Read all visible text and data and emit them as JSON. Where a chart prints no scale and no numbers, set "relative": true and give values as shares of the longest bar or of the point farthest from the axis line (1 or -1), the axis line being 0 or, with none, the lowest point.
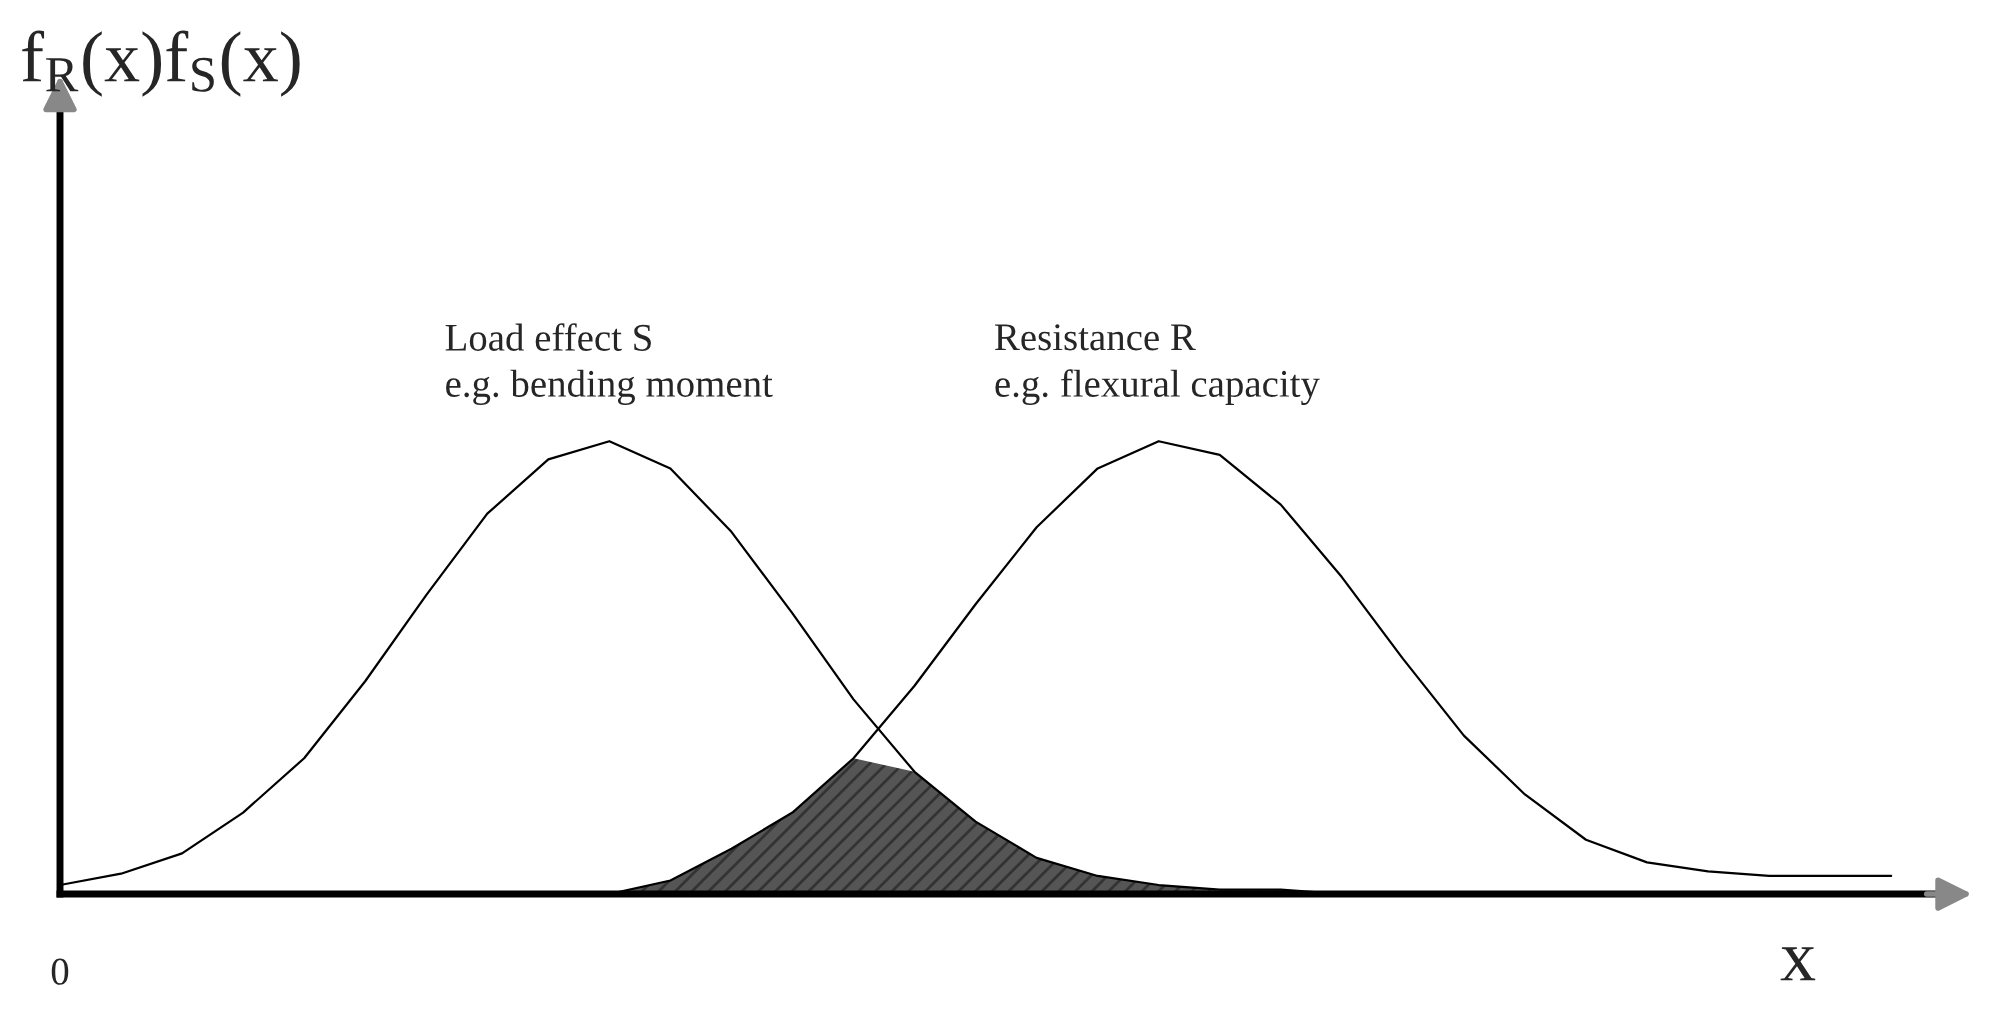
{
  "chart_data": {
    "type": "line",
    "relative": true,
    "ylabel": "f$_{R}$(x)f$_{S}$(x)",
    "xlabel": "x",
    "grid": false,
    "legend": false,
    "marker": "none",
    "line_style": "solid",
    "categories": [
      null,
      null,
      null,
      null,
      null,
      null,
      null,
      null,
      null,
      null,
      null,
      null,
      null,
      null,
      null,
      null,
      null,
      null,
      null,
      null,
      null,
      null,
      null,
      null,
      null,
      null,
      null,
      null,
      null,
      null,
      null
    ],
    "series": [
      {
        "type": "area",
        "color": "#555555",
        "values": [
          null,
          null,
          null,
          null,
          null,
          null,
          null,
          null,
          null,
          0,
          0.03,
          0.1,
          0.18,
          0.3,
          0.27,
          0.16,
          0.08,
          0.04,
          0.02,
          0.01,
          0.01,
          0,
          null,
          null,
          null,
          null,
          null,
          null,
          null,
          null,
          null
        ]
      },
      {
        "color": "#000000",
        "values": [
          0.02,
          0.045,
          0.09,
          0.18,
          0.3,
          0.47,
          0.66,
          0.84,
          0.96,
          1.0,
          0.94,
          0.8,
          0.62,
          0.43,
          0.27,
          0.16,
          0.08,
          0.04,
          0.02,
          0.01,
          0.01,
          0,
          null,
          null,
          null,
          null,
          null,
          null,
          null,
          null,
          null
        ]
      },
      {
        "color": "#000000",
        "values": [
          null,
          null,
          null,
          null,
          null,
          null,
          null,
          null,
          null,
          0,
          0.03,
          0.1,
          0.18,
          0.3,
          0.46,
          0.64,
          0.81,
          0.94,
          1.0,
          0.97,
          0.86,
          0.7,
          0.52,
          0.35,
          0.22,
          0.12,
          0.07,
          0.05,
          0.04,
          0.04,
          0.04
        ]
      }
    ],
    "annotations": [
      "Load effect S\ne.g. bending moment",
      "Resistance R\ne.g. flexural capacity",
      "0"
    ]
  }
}
